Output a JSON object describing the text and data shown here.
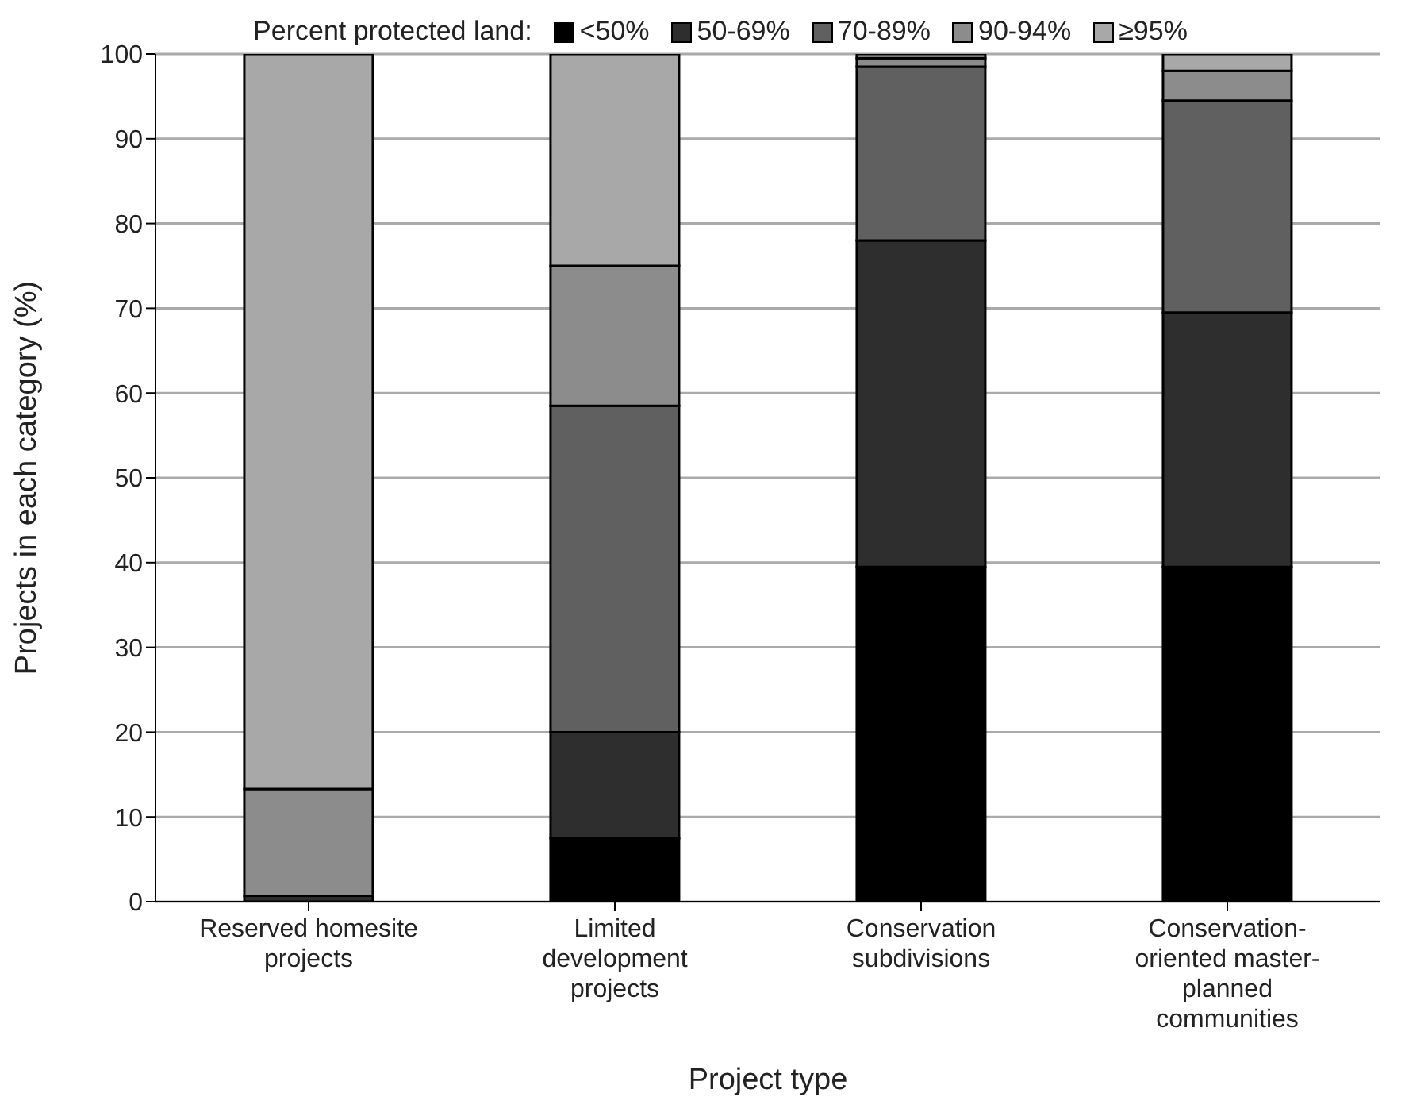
{
  "chart_data": {
    "type": "bar",
    "stacked": true,
    "xlabel": "Project type",
    "ylabel": "Projects in each category (%)",
    "legend_title": "Percent protected land:",
    "legend": "top",
    "categories": [
      "Reserved homesite projects",
      "Limited development projects",
      "Conservation subdivisions",
      "Conservation-oriented master-planned communities"
    ],
    "series": [
      {
        "name": "<50%",
        "color": "#000000",
        "values": [
          0,
          7.5,
          39.5,
          39.5
        ]
      },
      {
        "name": "50-69%",
        "color": "#2e2e2e",
        "values": [
          0.7,
          12.5,
          38.5,
          30
        ]
      },
      {
        "name": "70-89%",
        "color": "#606060",
        "values": [
          0,
          38.5,
          20.5,
          25
        ]
      },
      {
        "name": "90-94%",
        "color": "#8c8c8c",
        "values": [
          12.6,
          16.5,
          1,
          3.5
        ]
      },
      {
        "name": "≥95%",
        "color": "#a8a8a8",
        "values": [
          86.7,
          25,
          0.5,
          2
        ]
      }
    ],
    "ylim": [
      0,
      100
    ],
    "yticks": [
      0,
      10,
      20,
      30,
      40,
      50,
      60,
      70,
      80,
      90,
      100
    ],
    "grid": "y"
  }
}
